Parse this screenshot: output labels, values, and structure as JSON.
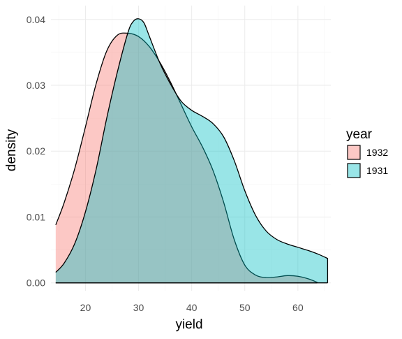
{
  "chart_data": {
    "type": "area",
    "subtype": "density",
    "title": "",
    "xlabel": "yield",
    "ylabel": "density",
    "xlim": [
      13.5,
      66.2
    ],
    "ylim": [
      -0.0012,
      0.0421
    ],
    "x_ticks": [
      20,
      30,
      40,
      50,
      60
    ],
    "x_tick_labels": [
      "20",
      "30",
      "40",
      "50",
      "60"
    ],
    "y_ticks": [
      0.0,
      0.01,
      0.02,
      0.03,
      0.04
    ],
    "y_tick_labels": [
      "0.00",
      "0.01",
      "0.02",
      "0.03",
      "0.04"
    ],
    "grid": true,
    "legend": {
      "title": "year",
      "position": "right"
    },
    "fill_opacity": 0.4,
    "outline_color": "#000000",
    "series": [
      {
        "name": "1932",
        "color": "#F8766D",
        "x": [
          14.4,
          16,
          18,
          20,
          22,
          24,
          26,
          28,
          30,
          32,
          34,
          36,
          38,
          40,
          42,
          44,
          46,
          48,
          50,
          52,
          54,
          56,
          58,
          60,
          62,
          63.6
        ],
        "y": [
          0.0088,
          0.0122,
          0.0174,
          0.0237,
          0.0302,
          0.0352,
          0.0376,
          0.0379,
          0.0374,
          0.0359,
          0.0335,
          0.0305,
          0.0271,
          0.0237,
          0.0207,
          0.0171,
          0.0123,
          0.0066,
          0.0027,
          0.0012,
          0.0008,
          0.0009,
          0.0011,
          0.001,
          0.0006,
          0.0001
        ]
      },
      {
        "name": "1931",
        "color": "#00BFC4",
        "x": [
          14.4,
          16,
          18,
          20,
          22,
          24,
          26,
          28,
          29,
          30,
          31,
          32,
          34,
          36,
          38,
          40,
          42,
          44,
          46,
          48,
          50,
          52,
          54,
          56,
          58,
          60,
          62,
          64,
          65.6
        ],
        "y": [
          0.0016,
          0.003,
          0.006,
          0.0108,
          0.0172,
          0.025,
          0.032,
          0.038,
          0.0397,
          0.0401,
          0.0395,
          0.0375,
          0.0334,
          0.0302,
          0.0276,
          0.0262,
          0.0253,
          0.0242,
          0.0222,
          0.0186,
          0.014,
          0.0103,
          0.0079,
          0.0066,
          0.0059,
          0.0054,
          0.0049,
          0.0043,
          0.0037
        ]
      }
    ]
  }
}
